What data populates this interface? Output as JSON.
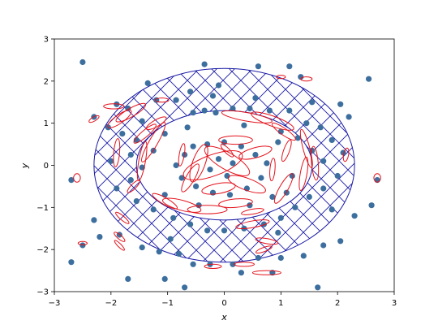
{
  "chart_data": {
    "type": "scatter",
    "title": "",
    "xlabel": "x",
    "ylabel": "y",
    "xlim": [
      -3,
      3
    ],
    "ylim": [
      -3,
      3
    ],
    "x_ticks": [
      "−3",
      "−2",
      "−1",
      "0",
      "1",
      "2",
      "3"
    ],
    "y_ticks": [
      "−3",
      "−2",
      "−1",
      "0",
      "1",
      "2",
      "3"
    ],
    "grid": false,
    "annulus": {
      "outer_rx": 2.3,
      "outer_ry": 2.3,
      "inner_rx": 1.55,
      "inner_ry": 1.3,
      "hatch": "crosshatch"
    },
    "colors": {
      "points": "#3d6f9e",
      "ellipses": "#e3121b",
      "annulus": "#1a1aa6"
    },
    "points": [
      [
        -2.5,
        2.45
      ],
      [
        2.55,
        2.05
      ],
      [
        -0.35,
        2.4
      ],
      [
        1.15,
        2.35
      ],
      [
        0.6,
        2.35
      ],
      [
        1.35,
        2.1
      ],
      [
        -1.35,
        1.95
      ],
      [
        -1.9,
        1.45
      ],
      [
        -1.7,
        1.35
      ],
      [
        -1.2,
        1.55
      ],
      [
        -0.85,
        1.55
      ],
      [
        -0.55,
        1.25
      ],
      [
        -0.35,
        1.3
      ],
      [
        -0.15,
        1.25
      ],
      [
        0.15,
        1.35
      ],
      [
        0.45,
        1.35
      ],
      [
        0.8,
        1.3
      ],
      [
        1.15,
        1.3
      ],
      [
        1.45,
        1.0
      ],
      [
        1.7,
        0.9
      ],
      [
        1.9,
        0.6
      ],
      [
        2.1,
        0.3
      ],
      [
        -2.05,
        0.9
      ],
      [
        -1.8,
        0.75
      ],
      [
        -1.55,
        0.6
      ],
      [
        -1.65,
        0.25
      ],
      [
        -2.0,
        0.1
      ],
      [
        -1.45,
        -0.05
      ],
      [
        -1.65,
        -0.35
      ],
      [
        -1.9,
        -0.55
      ],
      [
        -1.55,
        -0.85
      ],
      [
        -1.25,
        -1.05
      ],
      [
        -0.9,
        -1.25
      ],
      [
        -0.6,
        -1.4
      ],
      [
        -0.3,
        -1.55
      ],
      [
        0.0,
        -1.55
      ],
      [
        0.35,
        -1.5
      ],
      [
        0.7,
        -1.4
      ],
      [
        1.0,
        -1.25
      ],
      [
        1.25,
        -1.0
      ],
      [
        1.5,
        -0.75
      ],
      [
        1.75,
        -0.55
      ],
      [
        2.0,
        -0.25
      ],
      [
        1.75,
        0.1
      ],
      [
        1.55,
        0.35
      ],
      [
        1.3,
        0.65
      ],
      [
        -0.55,
        0.45
      ],
      [
        -0.3,
        0.5
      ],
      [
        0.0,
        0.55
      ],
      [
        0.3,
        0.45
      ],
      [
        0.55,
        0.25
      ],
      [
        0.75,
        0.05
      ],
      [
        0.65,
        -0.3
      ],
      [
        0.4,
        -0.55
      ],
      [
        0.1,
        -0.7
      ],
      [
        -0.2,
        -0.65
      ],
      [
        -0.5,
        -0.5
      ],
      [
        -0.75,
        -0.3
      ],
      [
        -0.85,
        0.0
      ],
      [
        -0.7,
        0.25
      ],
      [
        -0.1,
        0.15
      ],
      [
        0.15,
        0.05
      ],
      [
        -0.25,
        -0.1
      ],
      [
        0.05,
        -0.25
      ],
      [
        -1.05,
        0.75
      ],
      [
        1.0,
        0.8
      ],
      [
        1.1,
        -0.65
      ],
      [
        -1.05,
        -0.7
      ],
      [
        -2.3,
        -1.3
      ],
      [
        -2.2,
        -1.7
      ],
      [
        -1.85,
        -1.65
      ],
      [
        -1.45,
        -1.95
      ],
      [
        -1.15,
        -2.05
      ],
      [
        -0.8,
        -2.1
      ],
      [
        -0.55,
        -2.35
      ],
      [
        -0.25,
        -2.35
      ],
      [
        0.15,
        -2.35
      ],
      [
        0.6,
        -2.2
      ],
      [
        1.0,
        -2.2
      ],
      [
        1.4,
        -2.15
      ],
      [
        1.75,
        -1.9
      ],
      [
        2.05,
        -1.8
      ],
      [
        2.3,
        -1.2
      ],
      [
        2.7,
        -0.35
      ],
      [
        -2.7,
        -0.35
      ],
      [
        -2.5,
        -1.9
      ],
      [
        -2.7,
        -2.3
      ],
      [
        -1.7,
        -2.7
      ],
      [
        -1.05,
        -2.7
      ],
      [
        -0.7,
        -2.9
      ],
      [
        0.3,
        -2.55
      ],
      [
        0.85,
        -2.55
      ],
      [
        1.65,
        -2.9
      ],
      [
        2.6,
        -0.95
      ],
      [
        -2.3,
        1.15
      ],
      [
        2.2,
        1.15
      ],
      [
        2.05,
        1.45
      ],
      [
        -0.1,
        1.9
      ],
      [
        -0.2,
        1.65
      ],
      [
        -0.65,
        0.9
      ],
      [
        0.35,
        0.95
      ],
      [
        0.95,
        0.55
      ],
      [
        -1.25,
        0.35
      ],
      [
        1.2,
        -0.25
      ],
      [
        -0.45,
        -0.95
      ],
      [
        0.45,
        -0.95
      ],
      [
        0.85,
        -0.75
      ],
      [
        -0.95,
        -1.75
      ],
      [
        0.95,
        -1.6
      ],
      [
        -1.45,
        1.05
      ],
      [
        1.55,
        1.5
      ],
      [
        0.55,
        1.6
      ],
      [
        -0.6,
        1.75
      ],
      [
        1.9,
        -1.05
      ]
    ],
    "ellipses": [
      [
        -0.2,
        0.0,
        0.55,
        0.25,
        20
      ],
      [
        0.05,
        0.1,
        0.45,
        0.2,
        -30
      ],
      [
        -0.45,
        0.05,
        0.35,
        0.15,
        70
      ],
      [
        0.55,
        0.3,
        0.3,
        0.12,
        15
      ],
      [
        0.4,
        -0.45,
        0.35,
        0.14,
        -20
      ],
      [
        -0.1,
        -0.55,
        0.3,
        0.12,
        10
      ],
      [
        -0.6,
        -0.3,
        0.28,
        0.1,
        60
      ],
      [
        0.2,
        0.6,
        0.3,
        0.1,
        0
      ],
      [
        -1.25,
        0.55,
        0.4,
        0.1,
        60
      ],
      [
        -1.45,
        0.1,
        0.35,
        0.08,
        80
      ],
      [
        -1.4,
        0.75,
        0.25,
        0.08,
        40
      ],
      [
        -1.2,
        1.0,
        0.2,
        0.08,
        30
      ],
      [
        -1.85,
        1.1,
        0.25,
        0.1,
        35
      ],
      [
        -1.65,
        1.25,
        0.3,
        0.1,
        30
      ],
      [
        0.4,
        1.15,
        0.45,
        0.1,
        -10
      ],
      [
        0.85,
        1.05,
        0.4,
        0.12,
        -20
      ],
      [
        1.05,
        0.8,
        0.25,
        0.08,
        -35
      ],
      [
        1.45,
        0.4,
        0.35,
        0.08,
        -75
      ],
      [
        1.6,
        0.05,
        0.3,
        0.08,
        -85
      ],
      [
        1.4,
        -0.2,
        0.3,
        0.08,
        80
      ],
      [
        1.05,
        -0.55,
        0.3,
        0.1,
        60
      ],
      [
        -0.75,
        -0.95,
        0.35,
        0.12,
        -15
      ],
      [
        -0.3,
        -1.05,
        0.35,
        0.1,
        0
      ],
      [
        0.2,
        -0.9,
        0.3,
        0.1,
        5
      ],
      [
        -1.05,
        -0.85,
        0.25,
        0.08,
        -30
      ],
      [
        0.5,
        -1.4,
        0.3,
        0.08,
        10
      ],
      [
        1.1,
        0.35,
        0.2,
        0.07,
        70
      ],
      [
        -1.9,
        0.3,
        0.25,
        0.07,
        85
      ],
      [
        -1.6,
        -0.5,
        0.15,
        0.06,
        45
      ],
      [
        -1.8,
        -1.25,
        0.15,
        0.05,
        -40
      ],
      [
        -1.85,
        -1.7,
        0.12,
        0.05,
        -40
      ],
      [
        0.7,
        -2.0,
        0.15,
        0.05,
        20
      ],
      [
        0.75,
        -1.8,
        0.2,
        0.06,
        -10
      ],
      [
        0.5,
        -1.1,
        0.2,
        0.06,
        10
      ],
      [
        0.85,
        -0.1,
        0.2,
        0.06,
        85
      ],
      [
        -0.75,
        0.25,
        0.2,
        0.06,
        80
      ],
      [
        0.05,
        0.35,
        0.15,
        0.06,
        -45
      ],
      [
        2.15,
        0.25,
        0.12,
        0.06,
        80
      ],
      [
        -2.3,
        1.1,
        0.1,
        0.05,
        30
      ],
      [
        -1.85,
        -1.9,
        0.12,
        0.04,
        -45
      ],
      [
        -2.5,
        -1.85,
        0.08,
        0.04,
        0
      ],
      [
        0.75,
        -2.55,
        0.25,
        0.05,
        0
      ],
      [
        0.35,
        -2.35,
        0.18,
        0.05,
        0
      ],
      [
        -0.2,
        -2.4,
        0.15,
        0.05,
        0
      ],
      [
        -1.95,
        1.4,
        0.18,
        0.06,
        0
      ],
      [
        1.45,
        2.05,
        0.1,
        0.05,
        0
      ],
      [
        -1.1,
        1.55,
        0.12,
        0.05,
        0
      ],
      [
        -2.6,
        -0.3,
        0.06,
        0.1,
        0
      ],
      [
        2.7,
        -0.3,
        0.06,
        0.1,
        0
      ],
      [
        1.0,
        2.1,
        0.08,
        0.04,
        0
      ]
    ]
  }
}
